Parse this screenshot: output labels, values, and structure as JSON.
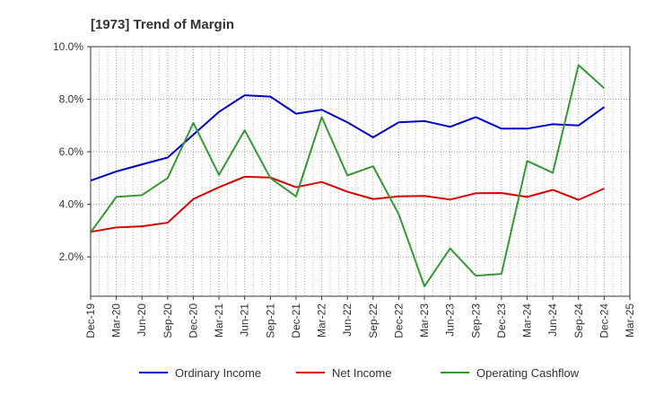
{
  "chart_data": {
    "type": "line",
    "title": "[1973]  Trend of Margin",
    "xlabel": "",
    "ylabel": "",
    "x_ticks": [
      "Dec-19",
      "Mar-20",
      "Jun-20",
      "Sep-20",
      "Dec-20",
      "Mar-21",
      "Jun-21",
      "Sep-21",
      "Dec-21",
      "Mar-22",
      "Jun-22",
      "Sep-22",
      "Dec-22",
      "Mar-23",
      "Jun-23",
      "Sep-23",
      "Dec-23",
      "Mar-24",
      "Jun-24",
      "Sep-24",
      "Dec-24",
      "Mar-25"
    ],
    "categories": [
      "Dec-19",
      "Mar-20",
      "Jun-20",
      "Sep-20",
      "Dec-20",
      "Mar-21",
      "Jun-21",
      "Sep-21",
      "Dec-21",
      "Mar-22",
      "Jun-22",
      "Sep-22",
      "Dec-22",
      "Mar-23",
      "Jun-23",
      "Sep-23",
      "Dec-23",
      "Mar-24",
      "Jun-24",
      "Sep-24",
      "Dec-24"
    ],
    "y_ticks": [
      "2.0%",
      "4.0%",
      "6.0%",
      "8.0%",
      "10.0%"
    ],
    "y_tick_values": [
      2,
      4,
      6,
      8,
      10
    ],
    "ylim": [
      0.5,
      10
    ],
    "grid": "dotted",
    "legend_position": "bottom",
    "series": [
      {
        "name": "Ordinary Income",
        "color": "#0000cc",
        "values": [
          4.9,
          5.25,
          5.52,
          5.78,
          6.65,
          7.52,
          8.15,
          8.1,
          7.45,
          7.6,
          7.12,
          6.55,
          7.12,
          7.17,
          6.95,
          7.32,
          6.88,
          6.88,
          7.05,
          7.0,
          7.7
        ]
      },
      {
        "name": "Net Income",
        "color": "#dd0000",
        "values": [
          2.95,
          3.12,
          3.16,
          3.3,
          4.2,
          4.65,
          5.05,
          5.02,
          4.65,
          4.85,
          4.48,
          4.2,
          4.3,
          4.32,
          4.18,
          4.42,
          4.43,
          4.28,
          4.55,
          4.17,
          4.6
        ]
      },
      {
        "name": "Operating Cashflow",
        "color": "#339933",
        "values": [
          2.93,
          4.28,
          4.35,
          5.0,
          7.1,
          5.12,
          6.82,
          5.0,
          4.3,
          7.32,
          5.1,
          5.45,
          3.62,
          0.88,
          2.32,
          1.28,
          1.35,
          5.65,
          5.2,
          9.3,
          8.42
        ]
      }
    ]
  }
}
